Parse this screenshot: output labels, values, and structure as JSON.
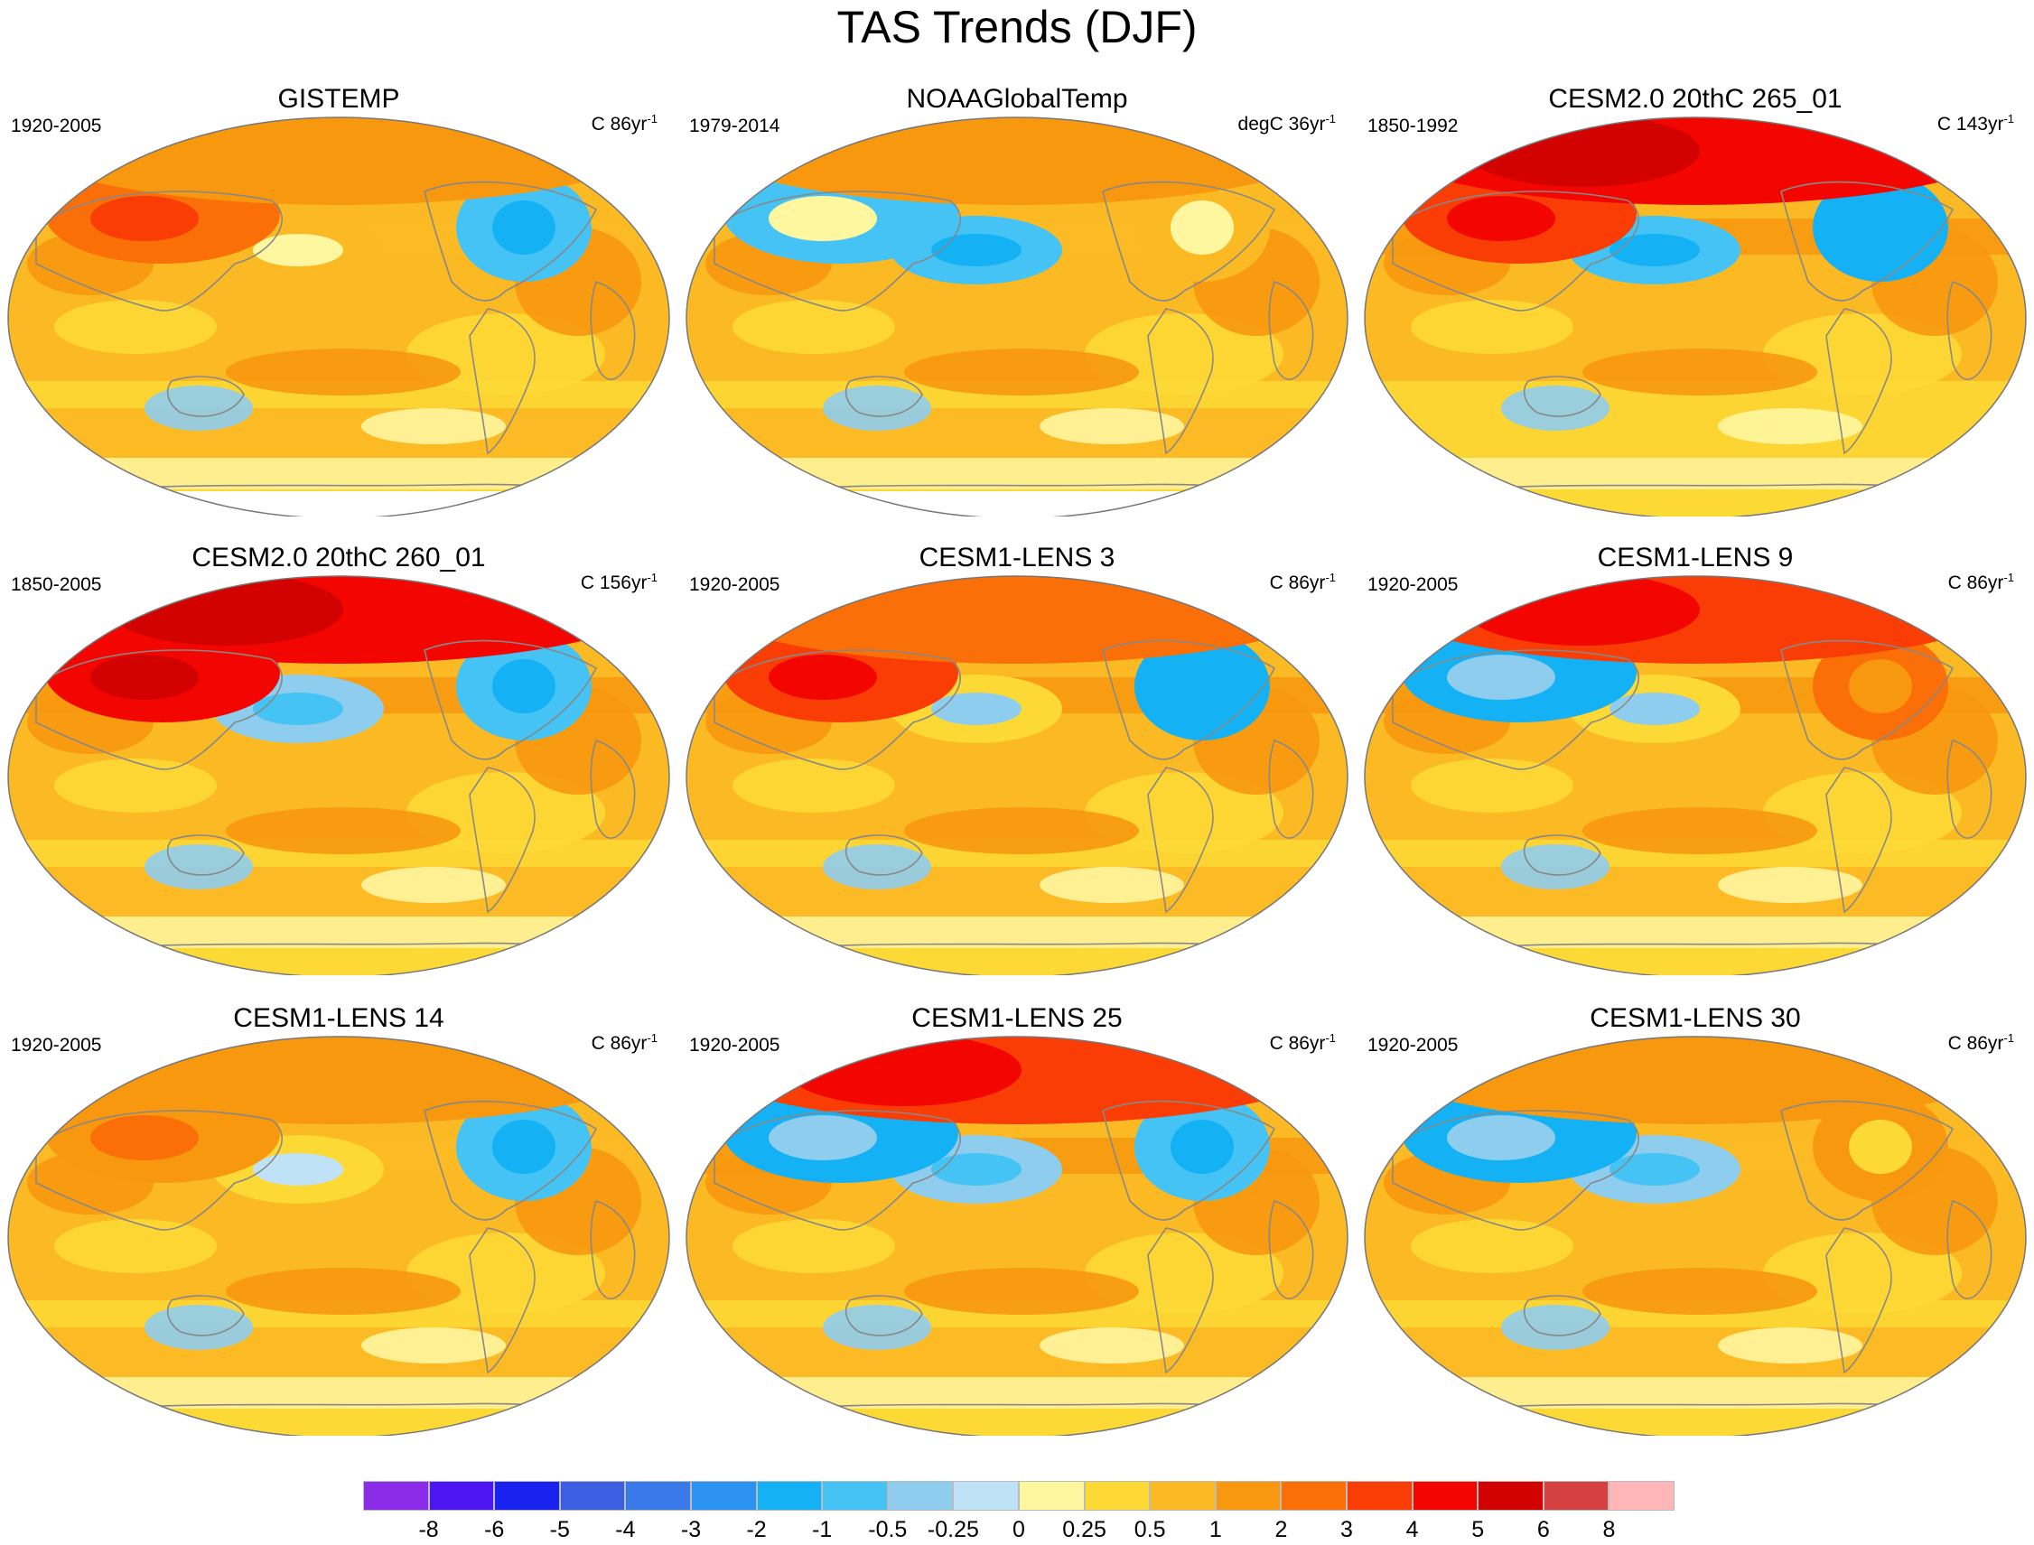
{
  "title": "TAS Trends (DJF)",
  "chart_data": [
    {
      "type": "heatmap",
      "title": "GISTEMP",
      "period": "1920-2005",
      "units_prefix": "C 86yr",
      "units_exp": "-1",
      "arctic": 1.5,
      "pacific": 0.6,
      "north_america": -0.6,
      "eurasia": 2.5,
      "southern": 0.8,
      "missing_polar": true
    },
    {
      "type": "heatmap",
      "title": "NOAAGlobalTemp",
      "period": "1979-2014",
      "units_prefix": "degC 36yr",
      "units_exp": "-1",
      "arctic": 1.2,
      "pacific": -0.6,
      "north_america": 0.8,
      "eurasia": -0.6,
      "southern": 0.5,
      "missing_polar": true
    },
    {
      "type": "heatmap",
      "title": "CESM2.0 20thC 265_01",
      "period": "1850-1992",
      "units_prefix": "C 143yr",
      "units_exp": "-1",
      "arctic": 4.5,
      "pacific": -0.8,
      "north_america": -1.2,
      "eurasia": 3.5,
      "southern": 0.4,
      "missing_polar": false
    },
    {
      "type": "heatmap",
      "title": "CESM2.0 20thC 260_01",
      "period": "1850-2005",
      "units_prefix": "C 156yr",
      "units_exp": "-1",
      "arctic": 4.5,
      "pacific": -0.4,
      "north_america": -0.8,
      "eurasia": 4.5,
      "southern": 0.6,
      "missing_polar": false
    },
    {
      "type": "heatmap",
      "title": "CESM1-LENS 3",
      "period": "1920-2005",
      "units_prefix": "C 86yr",
      "units_exp": "-1",
      "arctic": 2.5,
      "pacific": 0.3,
      "north_america": -1.2,
      "eurasia": 3.5,
      "southern": 0.7,
      "missing_polar": false
    },
    {
      "type": "heatmap",
      "title": "CESM1-LENS 9",
      "period": "1920-2005",
      "units_prefix": "C 86yr",
      "units_exp": "-1",
      "arctic": 3.5,
      "pacific": 0.3,
      "north_america": 2.5,
      "eurasia": -1.2,
      "southern": 0.6,
      "missing_polar": false
    },
    {
      "type": "heatmap",
      "title": "CESM1-LENS 14",
      "period": "1920-2005",
      "units_prefix": "C 86yr",
      "units_exp": "-1",
      "arctic": 1.5,
      "pacific": 0.4,
      "north_america": -0.8,
      "eurasia": 1.8,
      "southern": 0.6,
      "missing_polar": false
    },
    {
      "type": "heatmap",
      "title": "CESM1-LENS 25",
      "period": "1920-2005",
      "units_prefix": "C 86yr",
      "units_exp": "-1",
      "arctic": 3.0,
      "pacific": -0.3,
      "north_america": -0.6,
      "eurasia": -1.2,
      "southern": 0.7,
      "missing_polar": false
    },
    {
      "type": "heatmap",
      "title": "CESM1-LENS 30",
      "period": "1920-2005",
      "units_prefix": "C 86yr",
      "units_exp": "-1",
      "arctic": 1.5,
      "pacific": -0.3,
      "north_america": 1.2,
      "eurasia": -1.2,
      "southern": 0.6,
      "missing_polar": false
    }
  ],
  "colorbar": {
    "labels": [
      "-8",
      "-6",
      "-5",
      "-4",
      "-3",
      "-2",
      "-1",
      "-0.5",
      "-0.25",
      "0",
      "0.25",
      "0.5",
      "1",
      "2",
      "3",
      "4",
      "5",
      "6",
      "8"
    ],
    "colors": [
      "#8b2de8",
      "#4b16ef",
      "#1a22f0",
      "#3c5ee0",
      "#3a7ae8",
      "#2b92f2",
      "#14b2f5",
      "#45c3f4",
      "#8fcdef",
      "#bfe2f6",
      "#fff7a0",
      "#fdd936",
      "#fbba24",
      "#f7980e",
      "#fa6f07",
      "#f93d05",
      "#f40600",
      "#d10200",
      "#d54040",
      "#ffb6b6"
    ]
  }
}
